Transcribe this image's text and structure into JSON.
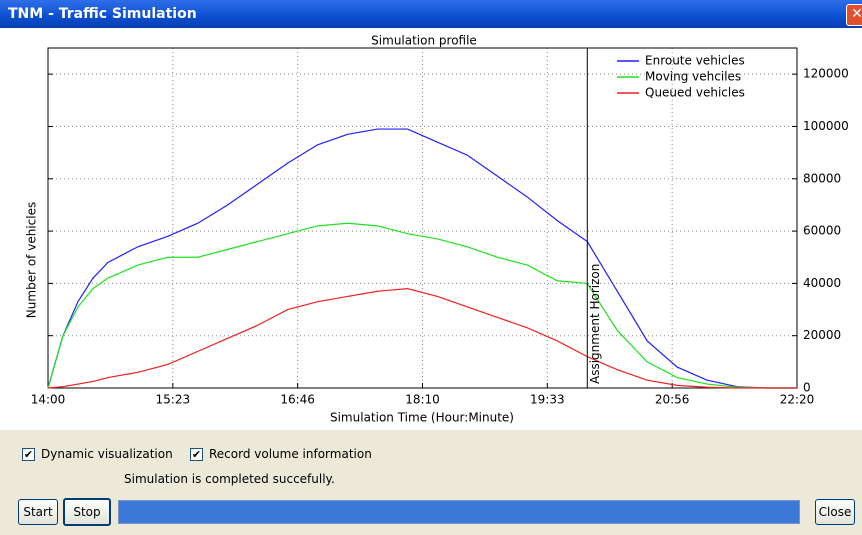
{
  "window": {
    "title": "TNM - Traffic Simulation"
  },
  "chart_data": {
    "type": "line",
    "title": "Simulation profile",
    "xlabel": "Simulation Time (Hour:Minute)",
    "ylabel": "Number of vehicles",
    "x": [
      840,
      850,
      860,
      870,
      880,
      900,
      920,
      940,
      960,
      980,
      1000,
      1020,
      1040,
      1060,
      1080,
      1100,
      1120,
      1140,
      1160,
      1180,
      1200,
      1220,
      1240,
      1260,
      1280,
      1300,
      1320,
      1340
    ],
    "series": [
      {
        "name": "Enroute vehicles",
        "color": "#2020ff",
        "values": [
          0,
          20000,
          33000,
          42000,
          48000,
          54000,
          58000,
          63000,
          70000,
          78000,
          86000,
          93000,
          97000,
          99000,
          99000,
          94000,
          89000,
          81000,
          73000,
          64000,
          56000,
          37000,
          18000,
          8000,
          3000,
          500,
          0,
          0
        ]
      },
      {
        "name": "Moving vehciles",
        "color": "#20e020",
        "values": [
          0,
          20000,
          31000,
          38000,
          42000,
          47000,
          50000,
          50000,
          53000,
          56000,
          59000,
          62000,
          63000,
          62000,
          59000,
          57000,
          54000,
          50000,
          47000,
          41000,
          40000,
          22000,
          10000,
          4000,
          1500,
          300,
          0,
          0
        ]
      },
      {
        "name": "Queued vehicles",
        "color": "#f02020",
        "values": [
          0,
          500,
          1500,
          2500,
          4000,
          6000,
          9000,
          14000,
          19000,
          24000,
          30000,
          33000,
          35000,
          37000,
          38000,
          35000,
          31000,
          27000,
          23000,
          18000,
          12000,
          7000,
          3000,
          1000,
          300,
          0,
          0,
          0
        ]
      }
    ],
    "xlim": [
      840,
      1340
    ],
    "xticks": [
      {
        "value": 840,
        "label": "14:00"
      },
      {
        "value": 923.33,
        "label": "15:23"
      },
      {
        "value": 1006.67,
        "label": "16:46"
      },
      {
        "value": 1090,
        "label": "18:10"
      },
      {
        "value": 1173.33,
        "label": "19:33"
      },
      {
        "value": 1256.67,
        "label": "20:56"
      },
      {
        "value": 1340,
        "label": "22:20"
      }
    ],
    "ylim": [
      0,
      130000
    ],
    "yticks": [
      0,
      20000,
      40000,
      60000,
      80000,
      100000,
      120000
    ],
    "y_axis_side": "right",
    "grid": true,
    "legend": "upper right",
    "annotations": [
      {
        "text": "Assignment Horizon",
        "x": 1200
      }
    ]
  },
  "controls": {
    "checkboxes": [
      {
        "label": "Dynamic visualization",
        "checked": true
      },
      {
        "label": "Record volume information",
        "checked": true
      }
    ],
    "status": "Simulation is completed succefully.",
    "buttons": {
      "start": "Start",
      "stop": "Stop",
      "close": "Close"
    }
  }
}
